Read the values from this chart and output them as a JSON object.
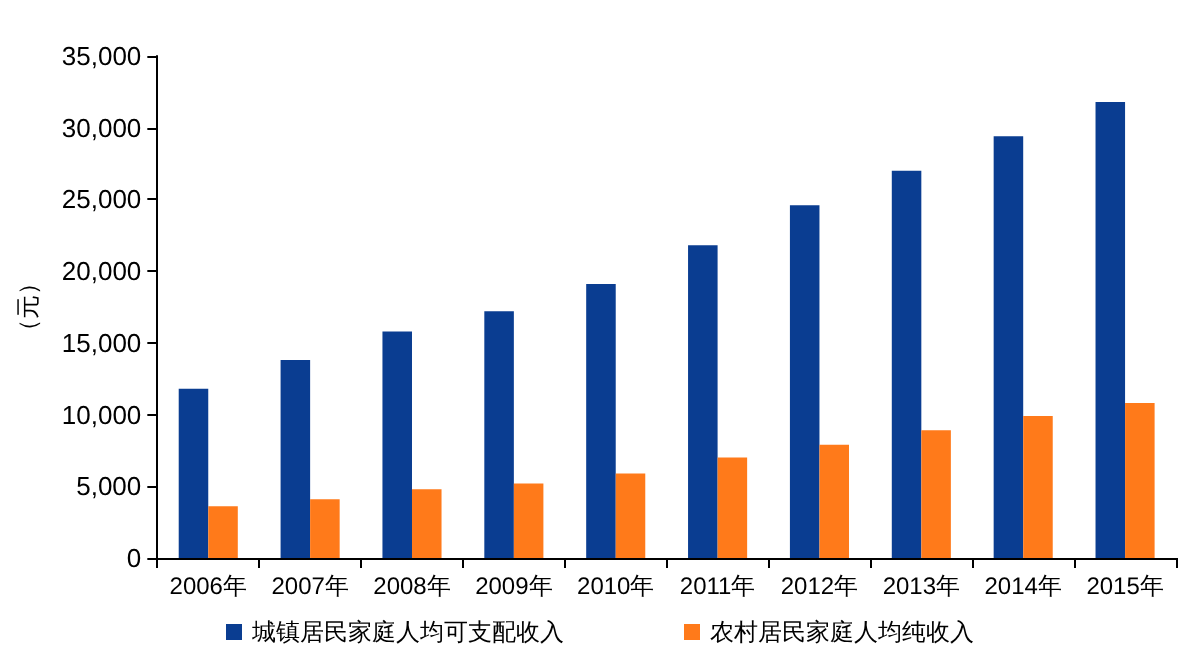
{
  "chart_data": {
    "type": "bar",
    "ylabel": "（元）",
    "categories": [
      "2006年",
      "2007年",
      "2008年",
      "2009年",
      "2010年",
      "2011年",
      "2012年",
      "2013年",
      "2014年",
      "2015年"
    ],
    "series": [
      {
        "name": "城镇居民家庭人均可支配收入",
        "color": "#0a3d91",
        "values": [
          11800,
          13800,
          15800,
          17200,
          19100,
          21800,
          24600,
          27000,
          29400,
          31800
        ]
      },
      {
        "name": "农村居民家庭人均纯收入",
        "color": "#ff7a1a",
        "values": [
          3600,
          4100,
          4800,
          5200,
          5900,
          7000,
          7900,
          8900,
          9900,
          10800
        ]
      }
    ],
    "ylim": [
      0,
      35000
    ],
    "yticks": [
      0,
      {
        "value": 5000,
        "label": "5,000"
      },
      {
        "value": 10000,
        "label": "10,000"
      },
      {
        "value": 15000,
        "label": "15,000"
      },
      {
        "value": 20000,
        "label": "20,000"
      },
      {
        "value": 25000,
        "label": "25,000"
      },
      {
        "value": 30000,
        "label": "30,000"
      },
      {
        "value": 35000,
        "label": "35,000"
      }
    ],
    "grid": false,
    "legend": "bottom"
  }
}
